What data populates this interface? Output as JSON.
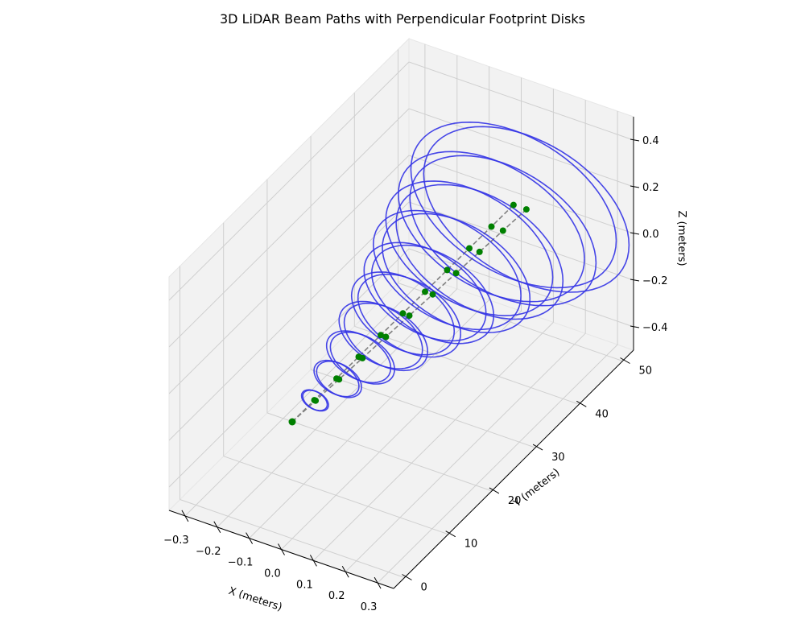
{
  "chart_data": {
    "type": "3d-line",
    "title": "3D LiDAR Beam Paths with Perpendicular Footprint Disks",
    "xlabel": "X (meters)",
    "ylabel": "Y (meters)",
    "zlabel": "Z (meters)",
    "xlim": [
      -0.35,
      0.35
    ],
    "ylim": [
      -2.5,
      52.5
    ],
    "zlim": [
      -0.5,
      0.5
    ],
    "xticks": [
      -0.3,
      -0.2,
      -0.1,
      0.0,
      0.1,
      0.2,
      0.3
    ],
    "xtick_labels": [
      "−0.3",
      "−0.2",
      "−0.1",
      "0.0",
      "0.1",
      "0.2",
      "0.3"
    ],
    "yticks": [
      0,
      10,
      20,
      30,
      40,
      50
    ],
    "ytick_labels": [
      "0",
      "10",
      "20",
      "30",
      "40",
      "50"
    ],
    "zticks": [
      -0.4,
      -0.2,
      0.0,
      0.2,
      0.4
    ],
    "ztick_labels": [
      "−0.4",
      "−0.2",
      "0.0",
      "0.2",
      "0.4"
    ],
    "grid": true,
    "beams": [
      {
        "origin": [
          0,
          0,
          0
        ],
        "end": [
          0.01,
          50,
          0.006
        ]
      },
      {
        "origin": [
          0,
          0,
          0
        ],
        "end": [
          0.05,
          50,
          0.006
        ]
      }
    ],
    "footprint_ranges_m": [
      5,
      10,
      15,
      20,
      25,
      30,
      35,
      40,
      45,
      50
    ],
    "footprint_radii_m": [
      0.04,
      0.07,
      0.1,
      0.13,
      0.16,
      0.19,
      0.23,
      0.26,
      0.29,
      0.32
    ],
    "colors": {
      "disk": "#3333e6",
      "beam": "#808080",
      "marker": "#008000"
    }
  }
}
